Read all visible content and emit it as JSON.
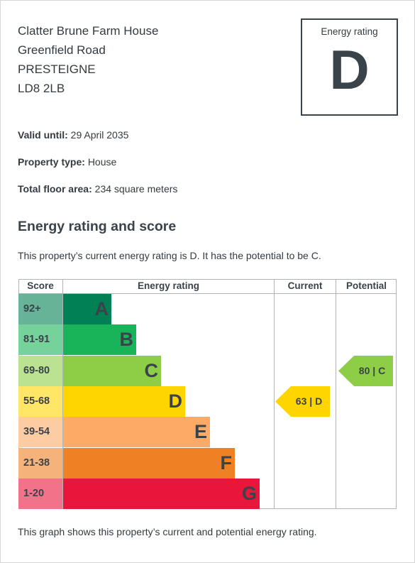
{
  "address": {
    "line1": "Clatter Brune Farm House",
    "line2": "Greenfield Road",
    "line3": "PRESTEIGNE",
    "line4": "LD8 2LB"
  },
  "rating_box": {
    "label": "Energy rating",
    "letter": "D"
  },
  "details": {
    "valid_label": "Valid until:",
    "valid_value": "29 April 2035",
    "type_label": "Property type:",
    "type_value": "House",
    "area_label": "Total floor area:",
    "area_value": "234 square meters"
  },
  "heading": "Energy rating and score",
  "summary": "This property’s current energy rating is D. It has the potential to be C.",
  "footer": "This graph shows this property’s current and potential energy rating.",
  "chart_data": {
    "type": "table",
    "headers": [
      "Score",
      "Energy rating",
      "Current",
      "Potential"
    ],
    "bands": [
      {
        "score": "92+",
        "letter": "A",
        "color": "#008054",
        "score_bg": "#66b398"
      },
      {
        "score": "81-91",
        "letter": "B",
        "color": "#19b459",
        "score_bg": "#75d29b"
      },
      {
        "score": "69-80",
        "letter": "C",
        "color": "#8dce46",
        "score_bg": "#bbe290"
      },
      {
        "score": "55-68",
        "letter": "D",
        "color": "#ffd500",
        "score_bg": "#ffe666"
      },
      {
        "score": "39-54",
        "letter": "E",
        "color": "#fcaa65",
        "score_bg": "#fdcca3"
      },
      {
        "score": "21-38",
        "letter": "F",
        "color": "#ef8023",
        "score_bg": "#f5b37b"
      },
      {
        "score": "1-20",
        "letter": "G",
        "color": "#e9153b",
        "score_bg": "#f27389"
      }
    ],
    "current": {
      "value": 63,
      "letter": "D",
      "label": "63 | D",
      "color": "#ffd500"
    },
    "potential": {
      "value": 80,
      "letter": "C",
      "label": "80 | C",
      "color": "#8dce46"
    }
  }
}
